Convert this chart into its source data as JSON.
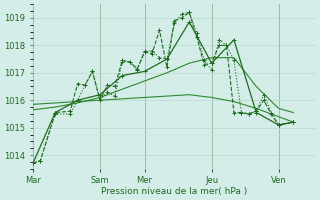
{
  "title": "",
  "xlabel": "Pression niveau de la mer( hPa )",
  "background_color": "#d4ede8",
  "ylim": [
    1013.5,
    1019.5
  ],
  "x_ticks_labels": [
    "Mar",
    "Sam",
    "Mer",
    "Jeu",
    "Ven"
  ],
  "x_ticks_pos": [
    0,
    9,
    15,
    24,
    33
  ],
  "x_day_boundaries": [
    0,
    9,
    15,
    24,
    33
  ],
  "xlim": [
    0,
    38
  ],
  "series": {
    "line_dotted": [
      [
        0,
        1013.7
      ],
      [
        1,
        1013.8
      ],
      [
        3,
        1015.5
      ],
      [
        5,
        1015.5
      ],
      [
        6,
        1016.0
      ],
      [
        7,
        1016.55
      ],
      [
        8,
        1017.05
      ],
      [
        9,
        1016.0
      ],
      [
        10,
        1016.3
      ],
      [
        11,
        1016.15
      ],
      [
        12,
        1017.4
      ],
      [
        13,
        1017.4
      ],
      [
        14,
        1017.1
      ],
      [
        15,
        1017.8
      ],
      [
        16,
        1017.8
      ],
      [
        17,
        1017.55
      ],
      [
        18,
        1017.5
      ],
      [
        19,
        1018.8
      ],
      [
        20,
        1019.15
      ],
      [
        21,
        1019.2
      ],
      [
        22,
        1018.45
      ],
      [
        23,
        1017.45
      ],
      [
        24,
        1017.1
      ],
      [
        25,
        1018.2
      ],
      [
        26,
        1018.0
      ],
      [
        27,
        1017.45
      ],
      [
        28,
        1015.55
      ],
      [
        29,
        1015.5
      ],
      [
        30,
        1015.6
      ],
      [
        31,
        1016.2
      ],
      [
        32,
        1015.55
      ],
      [
        33,
        1015.1
      ],
      [
        35,
        1015.2
      ]
    ],
    "line_solid_rise": [
      [
        0,
        1013.7
      ],
      [
        3,
        1015.55
      ],
      [
        6,
        1016.0
      ],
      [
        9,
        1016.2
      ],
      [
        12,
        1016.9
      ],
      [
        15,
        1017.05
      ],
      [
        18,
        1017.5
      ],
      [
        21,
        1018.85
      ],
      [
        24,
        1017.35
      ],
      [
        27,
        1018.2
      ],
      [
        30,
        1015.55
      ],
      [
        33,
        1015.1
      ],
      [
        35,
        1015.2
      ]
    ],
    "line_solid_flat": [
      [
        0,
        1015.85
      ],
      [
        3,
        1015.9
      ],
      [
        6,
        1015.95
      ],
      [
        9,
        1016.0
      ],
      [
        12,
        1016.05
      ],
      [
        15,
        1016.1
      ],
      [
        18,
        1016.15
      ],
      [
        21,
        1016.2
      ],
      [
        24,
        1016.1
      ],
      [
        27,
        1015.95
      ],
      [
        30,
        1015.7
      ],
      [
        33,
        1015.4
      ],
      [
        35,
        1015.2
      ]
    ],
    "line_solid_rise2": [
      [
        0,
        1015.65
      ],
      [
        3,
        1015.75
      ],
      [
        6,
        1015.9
      ],
      [
        9,
        1016.1
      ],
      [
        12,
        1016.4
      ],
      [
        15,
        1016.7
      ],
      [
        18,
        1017.0
      ],
      [
        21,
        1017.35
      ],
      [
        24,
        1017.55
      ],
      [
        27,
        1017.55
      ],
      [
        30,
        1016.5
      ],
      [
        33,
        1015.7
      ],
      [
        35,
        1015.55
      ]
    ],
    "line_zigzag": [
      [
        0,
        1013.7
      ],
      [
        1,
        1013.8
      ],
      [
        3,
        1015.55
      ],
      [
        5,
        1015.6
      ],
      [
        6,
        1016.6
      ],
      [
        7,
        1016.55
      ],
      [
        8,
        1017.05
      ],
      [
        9,
        1016.0
      ],
      [
        10,
        1016.55
      ],
      [
        11,
        1016.5
      ],
      [
        12,
        1017.45
      ],
      [
        13,
        1017.4
      ],
      [
        14,
        1017.15
      ],
      [
        15,
        1017.75
      ],
      [
        16,
        1017.7
      ],
      [
        17,
        1018.55
      ],
      [
        18,
        1017.2
      ],
      [
        19,
        1018.9
      ],
      [
        20,
        1019.0
      ],
      [
        21,
        1019.2
      ],
      [
        22,
        1018.3
      ],
      [
        23,
        1017.3
      ],
      [
        24,
        1017.35
      ],
      [
        25,
        1018.0
      ],
      [
        26,
        1018.0
      ],
      [
        27,
        1015.55
      ],
      [
        28,
        1015.55
      ],
      [
        29,
        1015.5
      ],
      [
        30,
        1015.6
      ],
      [
        31,
        1016.0
      ],
      [
        32,
        1015.5
      ],
      [
        33,
        1015.1
      ],
      [
        35,
        1015.2
      ]
    ]
  },
  "line_color": "#1e6b1e",
  "line_color2": "#2d882d",
  "grid_major_color": "#b8d8c8",
  "grid_minor_color": "#cce8d8"
}
